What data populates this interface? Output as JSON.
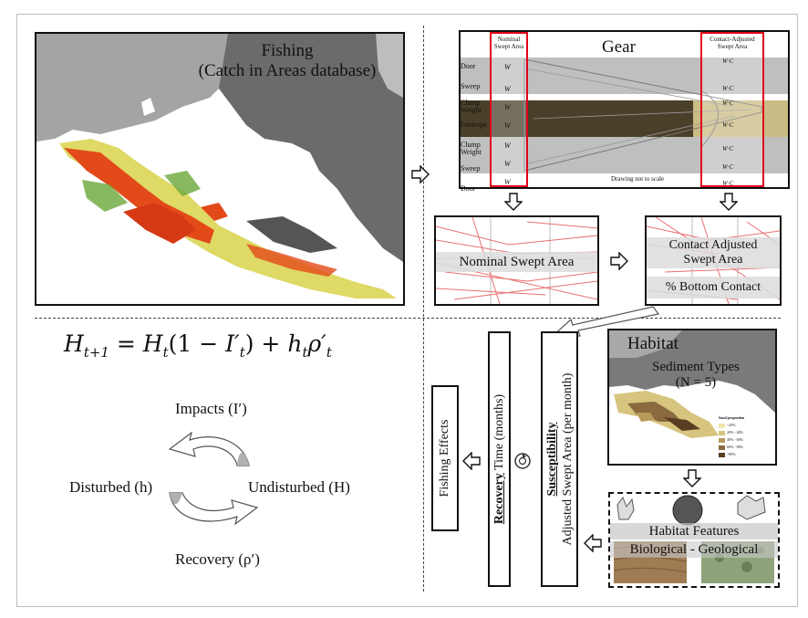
{
  "fishing": {
    "title": "Fishing",
    "subtitle": "(Catch in Areas database)"
  },
  "gear": {
    "title": "Gear",
    "nominal_header": [
      "Nominal",
      "Swept Area"
    ],
    "contact_header": [
      "Contact-Adjusted",
      "Swept Area"
    ],
    "parts": [
      "Door",
      "Sweep",
      "Clump",
      "Weight",
      "Footrope",
      "Clump",
      "Weight",
      "Sweep",
      "Door"
    ],
    "nominal_symbols": [
      "W",
      "W",
      "W",
      "W",
      "W",
      "W",
      "W"
    ],
    "contact_symbols": [
      "W·C",
      "W·C",
      "W·C",
      "W·C",
      "W·C",
      "W·C",
      "W·C"
    ],
    "caption": "Drawing not to scale"
  },
  "nominal_swept_area": {
    "label": "Nominal Swept Area"
  },
  "contact_adjusted": {
    "label_line1": "Contact Adjusted",
    "label_line2": "Swept Area",
    "bottom_contact": "% Bottom Contact"
  },
  "equation": {
    "text": "H_{t+1} = H_t(1 − I′_t) + h_t ρ′_t"
  },
  "cycle": {
    "impacts": "Impacts (I′)",
    "disturbed": "Disturbed (h)",
    "undisturbed": "Undisturbed (H)",
    "recovery": "Recovery (ρ′)"
  },
  "habitat": {
    "title": "Habitat",
    "subtitle": "Sediment Types",
    "count": "(N = 5)",
    "legend_title": "Sand proportion",
    "legend": [
      "<20%",
      "20% - 40%",
      "40% - 60%",
      "60% - 80%",
      ">80%"
    ],
    "legend_colors": [
      "#f2e6a8",
      "#d7c47e",
      "#b89a5c",
      "#8a6a3e",
      "#5a3e22"
    ]
  },
  "habitat_features": {
    "label": "Habitat Features",
    "categories": "Biological - Geological"
  },
  "susceptibility": {
    "bold": "Susceptibility",
    "rest": "Adjusted Swept Area (per month)"
  },
  "recovery_time": {
    "bold": "Recovery",
    "rest": " Time (months)"
  },
  "fishing_effects": {
    "label": "Fishing Effects"
  }
}
